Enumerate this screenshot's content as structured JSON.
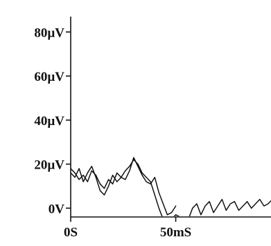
{
  "chart_data": {
    "type": "line",
    "title": "",
    "xlabel": "",
    "ylabel": "",
    "x_unit": "mS",
    "y_unit": "µV",
    "xlim": [
      0,
      96
    ],
    "ylim": [
      -4,
      87
    ],
    "grid": false,
    "legend": "none",
    "line_color": "#111111",
    "y_ticks": [
      {
        "value": 80,
        "label": "80µV"
      },
      {
        "value": 60,
        "label": "60µV"
      },
      {
        "value": 40,
        "label": "40µV"
      },
      {
        "value": 20,
        "label": "20µV"
      },
      {
        "value": 0,
        "label": "0V"
      }
    ],
    "x_ticks": [
      {
        "value": 0,
        "label": "0S"
      },
      {
        "value": 50,
        "label": "50mS"
      }
    ],
    "series": [
      {
        "x": [
          0,
          2,
          4,
          6,
          8,
          10,
          12,
          14,
          16,
          18,
          20,
          22,
          24,
          26,
          28,
          30,
          32,
          34,
          36,
          38,
          40,
          42,
          44,
          46,
          48,
          50
        ],
        "y": [
          16,
          14,
          18,
          12,
          16,
          19,
          14,
          8,
          6,
          10,
          15,
          12,
          14,
          13,
          17,
          23,
          19,
          15,
          12,
          11,
          14,
          7,
          2,
          -3,
          -2,
          1
        ]
      },
      {
        "x": [
          0,
          2,
          4,
          6,
          8,
          10,
          12,
          14,
          16,
          18,
          20,
          22,
          24,
          26,
          28,
          30,
          32,
          34,
          36,
          38,
          40,
          42,
          44,
          46,
          48,
          50,
          52,
          54,
          56,
          58,
          60,
          62,
          64,
          66,
          68,
          70,
          72,
          74,
          76,
          78,
          80,
          82,
          84,
          86,
          88,
          90,
          92,
          94,
          96
        ],
        "y": [
          18,
          16,
          13,
          15,
          12,
          17,
          15,
          11,
          9,
          13,
          11,
          16,
          14,
          17,
          19,
          22,
          20,
          16,
          14,
          12,
          6,
          0,
          -5,
          -5,
          -5,
          -3,
          -4,
          -5,
          -5,
          0,
          2,
          -3,
          1,
          3,
          -2,
          1,
          4,
          -1,
          2,
          3,
          -1,
          1,
          3,
          0,
          2,
          4,
          1,
          2,
          4
        ]
      }
    ]
  }
}
